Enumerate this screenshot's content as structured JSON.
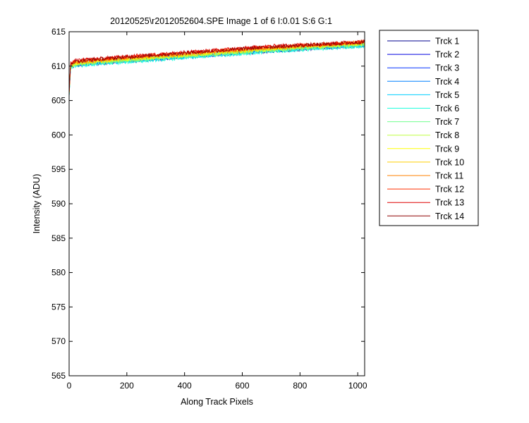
{
  "chart_data": {
    "type": "line",
    "title": "20120525\\r2012052604.SPE  Image 1 of 6  I:0.01  S:6  G:1",
    "xlabel": "Along Track Pixels",
    "ylabel": "Intensity (ADU)",
    "xlim": [
      0,
      1024
    ],
    "ylim": [
      565,
      615
    ],
    "xticks": [
      0,
      200,
      400,
      600,
      800,
      1000
    ],
    "yticks": [
      565,
      570,
      575,
      580,
      585,
      590,
      595,
      600,
      605,
      610,
      615
    ],
    "grid": false,
    "legend_position": "outside-right-top",
    "series": [
      {
        "name": "Trck 1",
        "color": "#00008f",
        "x": [
          0,
          5,
          20,
          100,
          300,
          500,
          700,
          900,
          1024
        ],
        "values": [
          605.5,
          609.8,
          610.1,
          610.4,
          611.0,
          611.6,
          612.2,
          612.7,
          613.0
        ]
      },
      {
        "name": "Trck 2",
        "color": "#0000df",
        "x": [
          0,
          5,
          20,
          100,
          300,
          500,
          700,
          900,
          1024
        ],
        "values": [
          605.6,
          609.9,
          610.2,
          610.5,
          611.1,
          611.7,
          612.3,
          612.8,
          613.1
        ]
      },
      {
        "name": "Trck 3",
        "color": "#0030ff",
        "x": [
          0,
          5,
          20,
          100,
          300,
          500,
          700,
          900,
          1024
        ],
        "values": [
          605.7,
          609.9,
          610.2,
          610.5,
          611.1,
          611.7,
          612.3,
          612.8,
          613.1
        ]
      },
      {
        "name": "Trck 4",
        "color": "#0080ff",
        "x": [
          0,
          5,
          20,
          100,
          300,
          500,
          700,
          900,
          1024
        ],
        "values": [
          605.7,
          610.0,
          610.3,
          610.6,
          611.2,
          611.8,
          612.4,
          612.9,
          613.2
        ]
      },
      {
        "name": "Trck 5",
        "color": "#00cfff",
        "x": [
          0,
          5,
          20,
          100,
          300,
          500,
          700,
          900,
          1024
        ],
        "values": [
          605.6,
          609.8,
          610.1,
          610.4,
          611.0,
          611.6,
          612.2,
          612.7,
          613.0
        ]
      },
      {
        "name": "Trck 6",
        "color": "#20ffdf",
        "x": [
          0,
          5,
          20,
          100,
          300,
          500,
          700,
          900,
          1024
        ],
        "values": [
          605.5,
          609.7,
          610.0,
          610.3,
          610.9,
          611.5,
          612.1,
          612.6,
          612.9
        ]
      },
      {
        "name": "Trck 7",
        "color": "#70ff8f",
        "x": [
          0,
          5,
          20,
          100,
          300,
          500,
          700,
          900,
          1024
        ],
        "values": [
          605.6,
          609.9,
          610.2,
          610.5,
          611.1,
          611.7,
          612.3,
          612.8,
          613.1
        ]
      },
      {
        "name": "Trck 8",
        "color": "#bfff40",
        "x": [
          0,
          5,
          20,
          100,
          300,
          500,
          700,
          900,
          1024
        ],
        "values": [
          605.7,
          610.0,
          610.3,
          610.6,
          611.2,
          611.8,
          612.4,
          612.9,
          613.2
        ]
      },
      {
        "name": "Trck 9",
        "color": "#ffff00",
        "x": [
          0,
          5,
          20,
          100,
          300,
          500,
          700,
          900,
          1024
        ],
        "values": [
          605.8,
          610.1,
          610.4,
          610.7,
          611.3,
          611.9,
          612.5,
          613.0,
          613.3
        ]
      },
      {
        "name": "Trck 10",
        "color": "#ffcf00",
        "x": [
          0,
          5,
          20,
          100,
          300,
          500,
          700,
          900,
          1024
        ],
        "values": [
          605.8,
          610.2,
          610.5,
          610.8,
          611.4,
          612.0,
          612.6,
          613.1,
          613.4
        ]
      },
      {
        "name": "Trck 11",
        "color": "#ff8000",
        "x": [
          0,
          5,
          20,
          100,
          300,
          500,
          700,
          900,
          1024
        ],
        "values": [
          605.9,
          610.3,
          610.6,
          610.9,
          611.5,
          612.1,
          612.7,
          613.2,
          613.5
        ]
      },
      {
        "name": "Trck 12",
        "color": "#ff3000",
        "x": [
          0,
          5,
          20,
          100,
          300,
          500,
          700,
          900,
          1024
        ],
        "values": [
          605.9,
          610.3,
          610.7,
          611.0,
          611.6,
          612.2,
          612.8,
          613.2,
          613.5
        ]
      },
      {
        "name": "Trck 13",
        "color": "#df0000",
        "x": [
          0,
          5,
          20,
          100,
          300,
          500,
          700,
          900,
          1024
        ],
        "values": [
          606.0,
          610.4,
          610.8,
          611.1,
          611.7,
          612.3,
          612.9,
          613.3,
          613.6
        ]
      },
      {
        "name": "Trck 14",
        "color": "#8f0000",
        "x": [
          0,
          5,
          20,
          100,
          300,
          500,
          700,
          900,
          1024
        ],
        "values": [
          605.9,
          610.3,
          610.7,
          611.0,
          611.6,
          612.2,
          612.8,
          613.2,
          613.5
        ]
      }
    ]
  }
}
